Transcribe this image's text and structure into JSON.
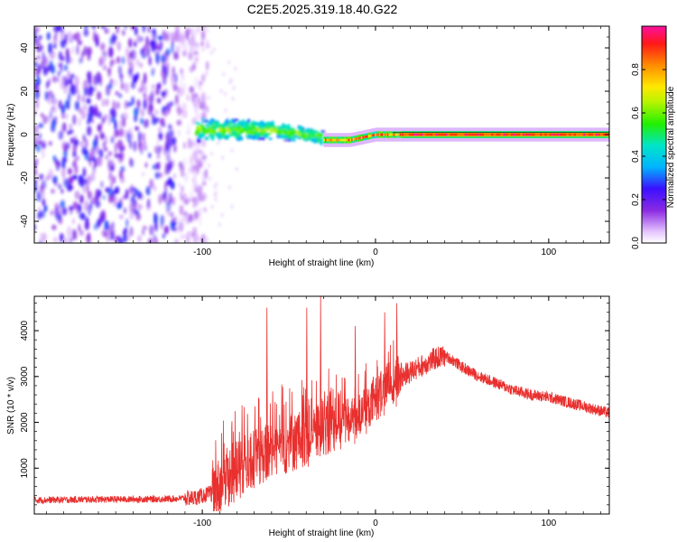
{
  "title": "C2E5.2025.319.18.40.G22",
  "chart_data": [
    {
      "type": "heatmap",
      "title": "C2E5.2025.319.18.40.G22",
      "xlabel": "Height of straight line (km)",
      "ylabel": "Frequency (Hz)",
      "xlim": [
        -197,
        135
      ],
      "ylim": [
        -50,
        50
      ],
      "xticks": [
        -100,
        0,
        100
      ],
      "xtick_labels": [
        "-100",
        "0",
        "100"
      ],
      "yticks": [
        -40,
        -20,
        0,
        20,
        40
      ],
      "ytick_labels": [
        "-40",
        "-20",
        "0",
        "20",
        "40"
      ],
      "colorbar": {
        "label": "Normalized spectral amplitude",
        "range": [
          0,
          1
        ],
        "ticks": [
          0.0,
          0.2,
          0.4,
          0.6,
          0.8
        ],
        "tick_labels": [
          "0.0",
          "0.2",
          "0.4",
          "0.6",
          "0.8"
        ]
      },
      "regions": [
        {
          "x_range": [
            -197,
            -103
          ],
          "freq_range": [
            -50,
            50
          ],
          "amplitude": 0.15,
          "pattern": "scattered noise"
        },
        {
          "x_range": [
            -103,
            -30
          ],
          "freq_center": 2,
          "freq_spread": 6,
          "amplitude": 0.45,
          "pattern": "broad band"
        },
        {
          "x_range": [
            -30,
            15
          ],
          "freq_center": -1.5,
          "freq_spread": 2,
          "amplitude": 0.75,
          "pattern": "narrowing band"
        },
        {
          "x_range": [
            15,
            135
          ],
          "freq_center": 0,
          "freq_spread": 1,
          "amplitude": 0.9,
          "pattern": "narrow strong line"
        }
      ]
    },
    {
      "type": "line",
      "xlabel": "Height of straight line (km)",
      "ylabel": "SNR (10 * v/v)",
      "xlim": [
        -197,
        135
      ],
      "ylim": [
        0,
        4750
      ],
      "xticks": [
        -100,
        0,
        100
      ],
      "xtick_labels": [
        "-100",
        "0",
        "100"
      ],
      "yticks": [
        1000,
        2000,
        3000,
        4000
      ],
      "ytick_labels": [
        "1000",
        "2000",
        "3000",
        "4000"
      ],
      "series": [
        {
          "name": "SNR",
          "color": "#e8302e",
          "x": [
            -197,
            -180,
            -160,
            -140,
            -120,
            -105,
            -100,
            -95,
            -90,
            -85,
            -80,
            -75,
            -70,
            -65,
            -60,
            -55,
            -50,
            -45,
            -40,
            -35,
            -30,
            -25,
            -20,
            -15,
            -10,
            -5,
            0,
            5,
            10,
            15,
            20,
            25,
            30,
            35,
            40,
            45,
            50,
            60,
            70,
            80,
            90,
            100,
            110,
            120,
            130,
            135
          ],
          "values": [
            300,
            310,
            320,
            320,
            330,
            350,
            400,
            450,
            600,
            800,
            1000,
            1100,
            1200,
            1300,
            1400,
            1500,
            1500,
            1600,
            1700,
            1800,
            1900,
            2000,
            2050,
            2100,
            2150,
            2300,
            2500,
            2750,
            2900,
            3000,
            3100,
            3200,
            3300,
            3400,
            3450,
            3350,
            3200,
            3000,
            2850,
            2700,
            2600,
            2550,
            2450,
            2350,
            2250,
            2200
          ],
          "spikes": [
            {
              "x": -63,
              "value": 4500
            },
            {
              "x": -40,
              "value": 4500
            },
            {
              "x": -32,
              "value": 4750
            },
            {
              "x": -12,
              "value": 4100
            },
            {
              "x": 5,
              "value": 4400
            },
            {
              "x": 12,
              "value": 4600
            }
          ]
        }
      ]
    }
  ]
}
